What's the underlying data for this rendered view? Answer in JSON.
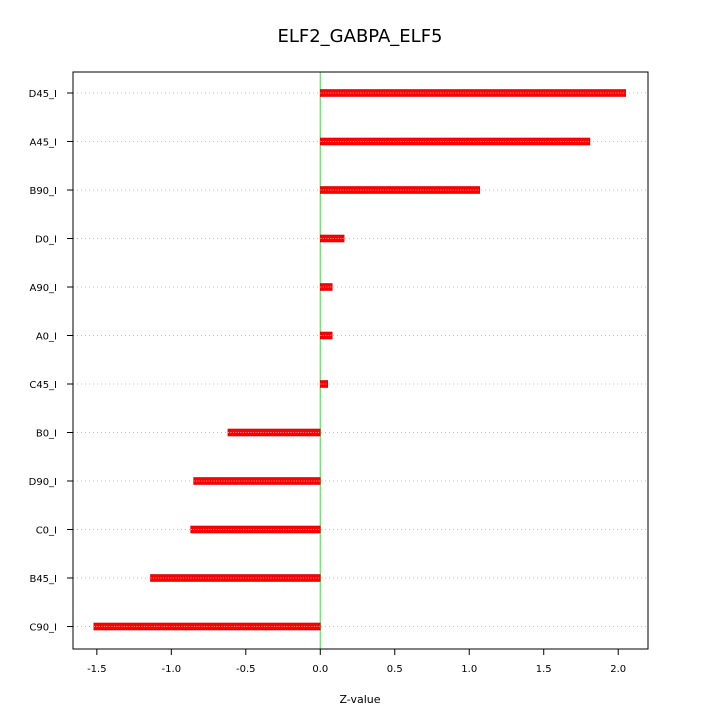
{
  "chart_data": {
    "type": "bar",
    "orientation": "horizontal",
    "title": "ELF2_GABPA_ELF5",
    "xlabel": "Z-value",
    "ylabel": "",
    "categories": [
      "D45_I",
      "A45_I",
      "B90_I",
      "D0_I",
      "A90_I",
      "A0_I",
      "C45_I",
      "B0_I",
      "D90_I",
      "C0_I",
      "B45_I",
      "C90_I"
    ],
    "values": [
      2.05,
      1.81,
      1.07,
      0.16,
      0.08,
      0.08,
      0.05,
      -0.62,
      -0.85,
      -0.87,
      -1.14,
      -1.52
    ],
    "xlim": [
      -1.66,
      2.2
    ],
    "xticks": [
      -1.5,
      -1.0,
      -0.5,
      0.0,
      0.5,
      1.0,
      1.5,
      2.0
    ],
    "xtick_labels": [
      "-1.5",
      "-1.0",
      "-0.5",
      "0.0",
      "0.5",
      "1.0",
      "1.5",
      "2.0"
    ],
    "reference_line": 0.0,
    "grid": "horizontal-dotted",
    "colors": {
      "bar": "#ff0000",
      "bar_edge": "#cc0000",
      "reference_line": "#66dd66",
      "grid": "#bfbfbf",
      "frame": "#000000"
    }
  }
}
